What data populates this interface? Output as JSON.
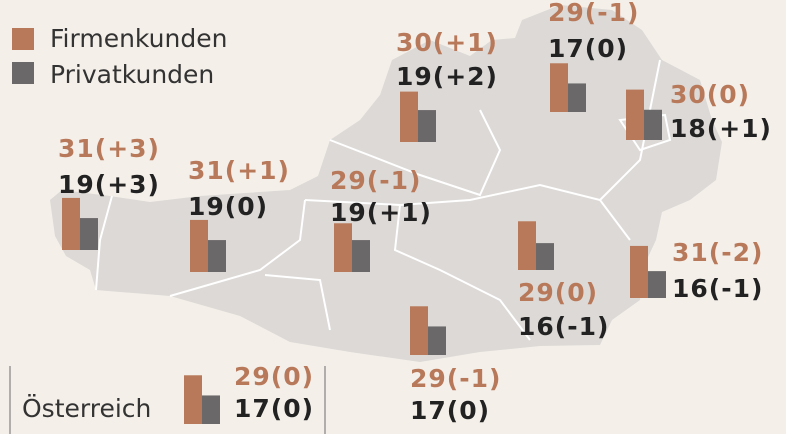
{
  "legend": {
    "firm": {
      "label": "Firmenkunden",
      "color": "#b8795a"
    },
    "private": {
      "label": "Privatkunden",
      "color": "#6b6869"
    }
  },
  "regions": [
    {
      "firm": {
        "value": 31,
        "label": "31(+3)"
      },
      "private": {
        "value": 19,
        "label": "19(+3)"
      }
    },
    {
      "firm": {
        "value": 31,
        "label": "31(+1)"
      },
      "private": {
        "value": 19,
        "label": "19(0)"
      }
    },
    {
      "firm": {
        "value": 29,
        "label": "29(-1)"
      },
      "private": {
        "value": 19,
        "label": "19(+1)"
      }
    },
    {
      "firm": {
        "value": 30,
        "label": "30(+1)"
      },
      "private": {
        "value": 19,
        "label": "19(+2)"
      }
    },
    {
      "firm": {
        "value": 29,
        "label": "29(-1)"
      },
      "private": {
        "value": 17,
        "label": "17(0)"
      }
    },
    {
      "firm": {
        "value": 30,
        "label": "30(0)"
      },
      "private": {
        "value": 18,
        "label": "18(+1)"
      }
    },
    {
      "firm": {
        "value": 31,
        "label": "31(-2)"
      },
      "private": {
        "value": 16,
        "label": "16(-1)"
      }
    },
    {
      "firm": {
        "value": 29,
        "label": "29(0)"
      },
      "private": {
        "value": 16,
        "label": "16(-1)"
      }
    },
    {
      "firm": {
        "value": 29,
        "label": "29(-1)"
      },
      "private": {
        "value": 17,
        "label": "17(0)"
      }
    }
  ],
  "total": {
    "name": "Österreich",
    "firm": {
      "value": 29,
      "label": "29(0)"
    },
    "private": {
      "value": 17,
      "label": "17(0)"
    }
  }
}
